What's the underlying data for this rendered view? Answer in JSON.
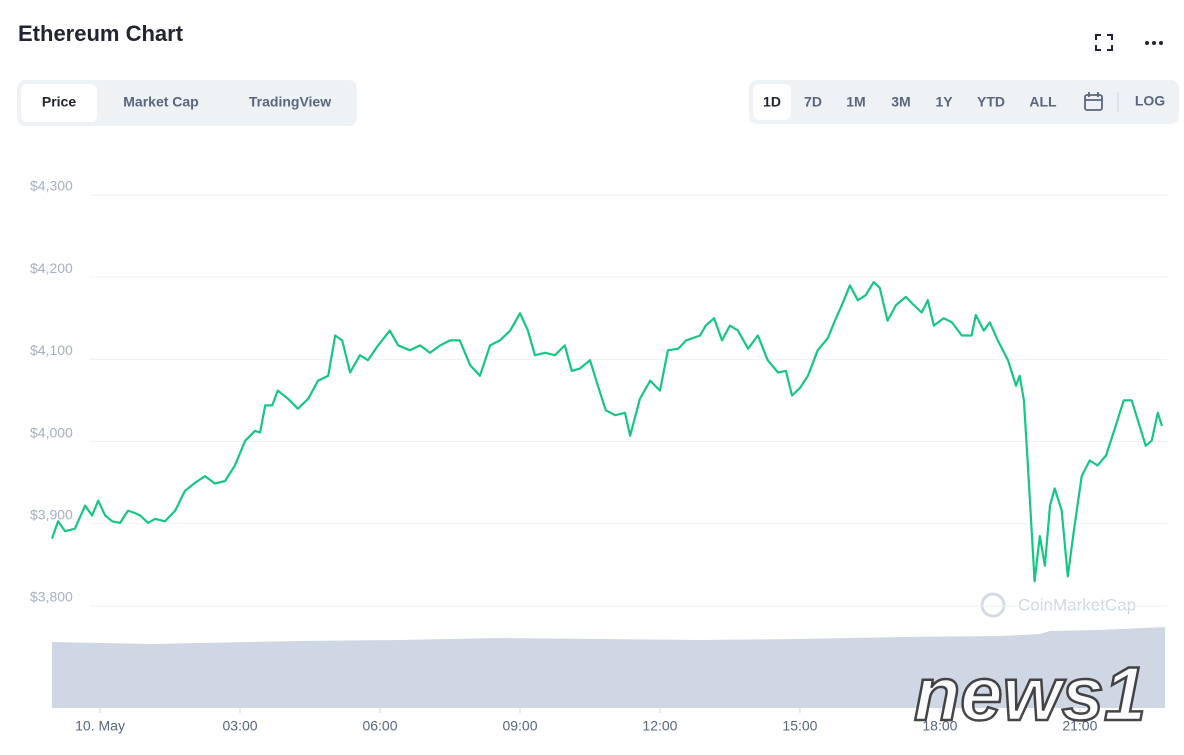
{
  "header": {
    "title": "Ethereum Chart",
    "tabs": [
      "Price",
      "Market Cap",
      "TradingView"
    ],
    "ranges": [
      "1D",
      "7D",
      "1M",
      "3M",
      "1Y",
      "YTD",
      "ALL"
    ],
    "log": "LOG"
  },
  "chart_data": {
    "type": "line",
    "x": [
      -1.03,
      -0.9,
      -0.75,
      -0.54,
      -0.32,
      -0.17,
      -0.04,
      0.11,
      0.26,
      0.43,
      0.6,
      0.75,
      0.86,
      1.03,
      1.18,
      1.39,
      1.61,
      1.82,
      2.04,
      2.25,
      2.46,
      2.68,
      2.89,
      3.11,
      3.32,
      3.43,
      3.54,
      3.69,
      3.81,
      4.03,
      4.24,
      4.46,
      4.67,
      4.89,
      5.04,
      5.19,
      5.36,
      5.57,
      5.74,
      5.96,
      6.21,
      6.39,
      6.64,
      6.86,
      7.07,
      7.29,
      7.5,
      7.71,
      7.93,
      8.14,
      8.36,
      8.57,
      8.79,
      9.0,
      9.17,
      9.32,
      9.54,
      9.75,
      9.96,
      10.11,
      10.29,
      10.5,
      10.67,
      10.84,
      11.04,
      11.25,
      11.36,
      11.57,
      11.79,
      12.0,
      12.17,
      12.39,
      12.56,
      12.86,
      12.98,
      13.16,
      13.33,
      13.5,
      13.67,
      13.89,
      14.1,
      14.31,
      14.53,
      14.7,
      14.83,
      15.0,
      15.17,
      15.38,
      15.6,
      15.75,
      15.9,
      16.07,
      16.24,
      16.41,
      16.58,
      16.71,
      16.88,
      17.06,
      17.27,
      17.44,
      17.61,
      17.74,
      17.87,
      18.08,
      18.26,
      18.47,
      18.68,
      18.77,
      18.94,
      19.07,
      19.24,
      19.46,
      19.63,
      19.71,
      19.8,
      19.88,
      20.03,
      20.14,
      20.25,
      20.36,
      20.46,
      20.61,
      20.74,
      20.87,
      21.04,
      21.21,
      21.38,
      21.56,
      21.75,
      21.94,
      22.11,
      22.28,
      22.41,
      22.54,
      22.67,
      22.76
    ],
    "series": [
      {
        "color": "#16c784",
        "values": [
          3882,
          3903,
          3891,
          3894,
          3922,
          3910,
          3928,
          3910,
          3903,
          3901,
          3916,
          3913,
          3910,
          3901,
          3906,
          3903,
          3916,
          3940,
          3950,
          3958,
          3949,
          3952,
          3971,
          4001,
          4013,
          4011,
          4044,
          4044,
          4062,
          4052,
          4040,
          4052,
          4074,
          4080,
          4129,
          4123,
          4084,
          4105,
          4099,
          4117,
          4135,
          4117,
          4111,
          4117,
          4108,
          4117,
          4123,
          4123,
          4093,
          4080,
          4117,
          4123,
          4135,
          4156,
          4135,
          4105,
          4108,
          4105,
          4117,
          4086,
          4089,
          4099,
          4068,
          4038,
          4032,
          4035,
          4007,
          4052,
          4074,
          4062,
          4111,
          4113,
          4123,
          4129,
          4141,
          4150,
          4123,
          4141,
          4135,
          4113,
          4129,
          4099,
          4084,
          4086,
          4056,
          4065,
          4080,
          4111,
          4126,
          4147,
          4166,
          4190,
          4172,
          4178,
          4194,
          4187,
          4147,
          4166,
          4176,
          4166,
          4157,
          4172,
          4141,
          4150,
          4145,
          4129,
          4129,
          4154,
          4135,
          4145,
          4123,
          4099,
          4068,
          4080,
          4050,
          3977,
          3830,
          3885,
          3849,
          3922,
          3943,
          3916,
          3836,
          3891,
          3958,
          3977,
          3971,
          3983,
          4016,
          4050,
          4050,
          4019,
          3995,
          4001,
          4035,
          4019
        ]
      }
    ],
    "xlim": [
      -1.03,
      22.76
    ],
    "xticks": [
      {
        "value": 0,
        "label": "10. May"
      },
      {
        "value": 3,
        "label": "03:00"
      },
      {
        "value": 6,
        "label": "06:00"
      },
      {
        "value": 9,
        "label": "09:00"
      },
      {
        "value": 12,
        "label": "12:00"
      },
      {
        "value": 15,
        "label": "15:00"
      },
      {
        "value": 18,
        "label": "18:00"
      },
      {
        "value": 21,
        "label": "21:00"
      }
    ],
    "ylim": [
      3780,
      4320
    ],
    "yticks": [
      {
        "value": 3800,
        "label": "$3,800"
      },
      {
        "value": 3900,
        "label": "$3,900"
      },
      {
        "value": 4000,
        "label": "$4,000"
      },
      {
        "value": 4100,
        "label": "$4,100"
      },
      {
        "value": 4200,
        "label": "$4,200"
      },
      {
        "value": 4300,
        "label": "$4,300"
      }
    ],
    "grid": true,
    "watermark": "CoinMarketCap"
  },
  "watermark": "news1"
}
